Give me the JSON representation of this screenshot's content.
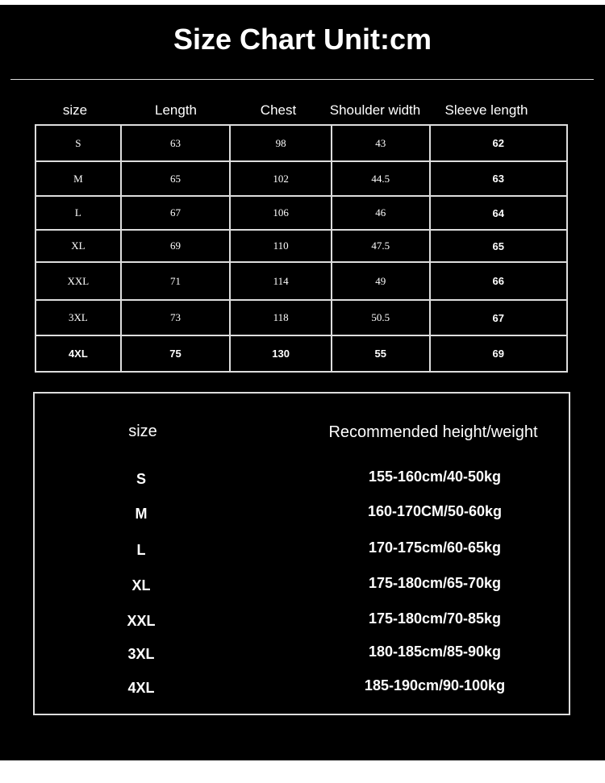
{
  "title": "Size Chart Unit:cm",
  "measurements": {
    "headers": [
      "size",
      "Length",
      "Chest",
      "Shoulder width",
      "Sleeve length"
    ],
    "rows": [
      [
        "S",
        "63",
        "98",
        "43",
        "62"
      ],
      [
        "M",
        "65",
        "102",
        "44.5",
        "63"
      ],
      [
        "L",
        "67",
        "106",
        "46",
        "64"
      ],
      [
        "XL",
        "69",
        "110",
        "47.5",
        "65"
      ],
      [
        "XXL",
        "71",
        "114",
        "49",
        "66"
      ],
      [
        "3XL",
        "73",
        "118",
        "50.5",
        "67"
      ],
      [
        "4XL",
        "75",
        "130",
        "55",
        "69"
      ]
    ]
  },
  "recommendation": {
    "headers": [
      "size",
      "Recommended height/weight"
    ],
    "rows": [
      [
        "S",
        "155-160cm/40-50kg"
      ],
      [
        "M",
        "160-170CM/50-60kg"
      ],
      [
        "L",
        "170-175cm/60-65kg"
      ],
      [
        "XL",
        "175-180cm/65-70kg"
      ],
      [
        "XXL",
        "175-180cm/70-85kg"
      ],
      [
        "3XL",
        "180-185cm/85-90kg"
      ],
      [
        "4XL",
        "185-190cm/90-100kg"
      ]
    ]
  }
}
